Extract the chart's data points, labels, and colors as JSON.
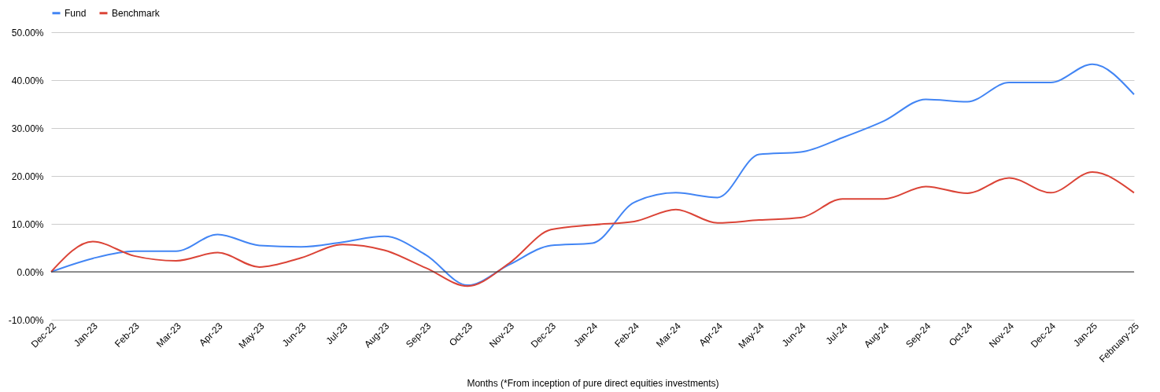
{
  "chart_data": {
    "type": "line",
    "xlabel": "Months (*From inception of pure direct equities investments)",
    "categories": [
      "Dec-22",
      "Jan-23",
      "Feb-23",
      "Mar-23",
      "Apr-23",
      "May-23",
      "Jun-23",
      "Jul-23",
      "Aug-23",
      "Sep-23",
      "Oct-23",
      "Nov-23",
      "Dec-23",
      "Jan-24",
      "Feb-24",
      "Mar-24",
      "Apr-24",
      "May-24",
      "Jun-24",
      "Jul-24",
      "Aug-24",
      "Sep-24",
      "Oct-24",
      "Nov-24",
      "Dec-24",
      "Jan-25",
      "February-25"
    ],
    "series": [
      {
        "name": "Fund",
        "color": "#4285f4",
        "values": [
          0,
          2.8,
          4.3,
          4.3,
          7.8,
          5.5,
          5.2,
          6.2,
          7.4,
          3.5,
          -2.8,
          1.5,
          5.5,
          6.0,
          14.5,
          16.5,
          15.5,
          24.5,
          25,
          28,
          31.5,
          36,
          35.5,
          39.5,
          39.5,
          43.3,
          37
        ]
      },
      {
        "name": "Benchmark",
        "color": "#db4437",
        "values": [
          0,
          6.3,
          3.3,
          2.3,
          4.0,
          1.0,
          2.9,
          5.7,
          4.5,
          0.8,
          -3.0,
          1.8,
          8.8,
          9.8,
          10.5,
          13,
          10.2,
          10.8,
          11.3,
          15.2,
          15.2,
          17.8,
          16.4,
          19.6,
          16.5,
          20.8,
          16.5
        ]
      }
    ],
    "ylim": [
      -10,
      50
    ],
    "yticks": [
      {
        "value": -10,
        "label": "-10.00%"
      },
      {
        "value": 0,
        "label": "0.00%"
      },
      {
        "value": 10,
        "label": "10.00%"
      },
      {
        "value": 20,
        "label": "20.00%"
      },
      {
        "value": 30,
        "label": "30.00%"
      },
      {
        "value": 40,
        "label": "40.00%"
      },
      {
        "value": 50,
        "label": "50.00%"
      }
    ],
    "ref_lines": [
      {
        "axis": "y",
        "value": 0,
        "color": "#333333"
      }
    ],
    "grid": "y",
    "legend": "top",
    "marker": "none",
    "line_style": "solid"
  }
}
